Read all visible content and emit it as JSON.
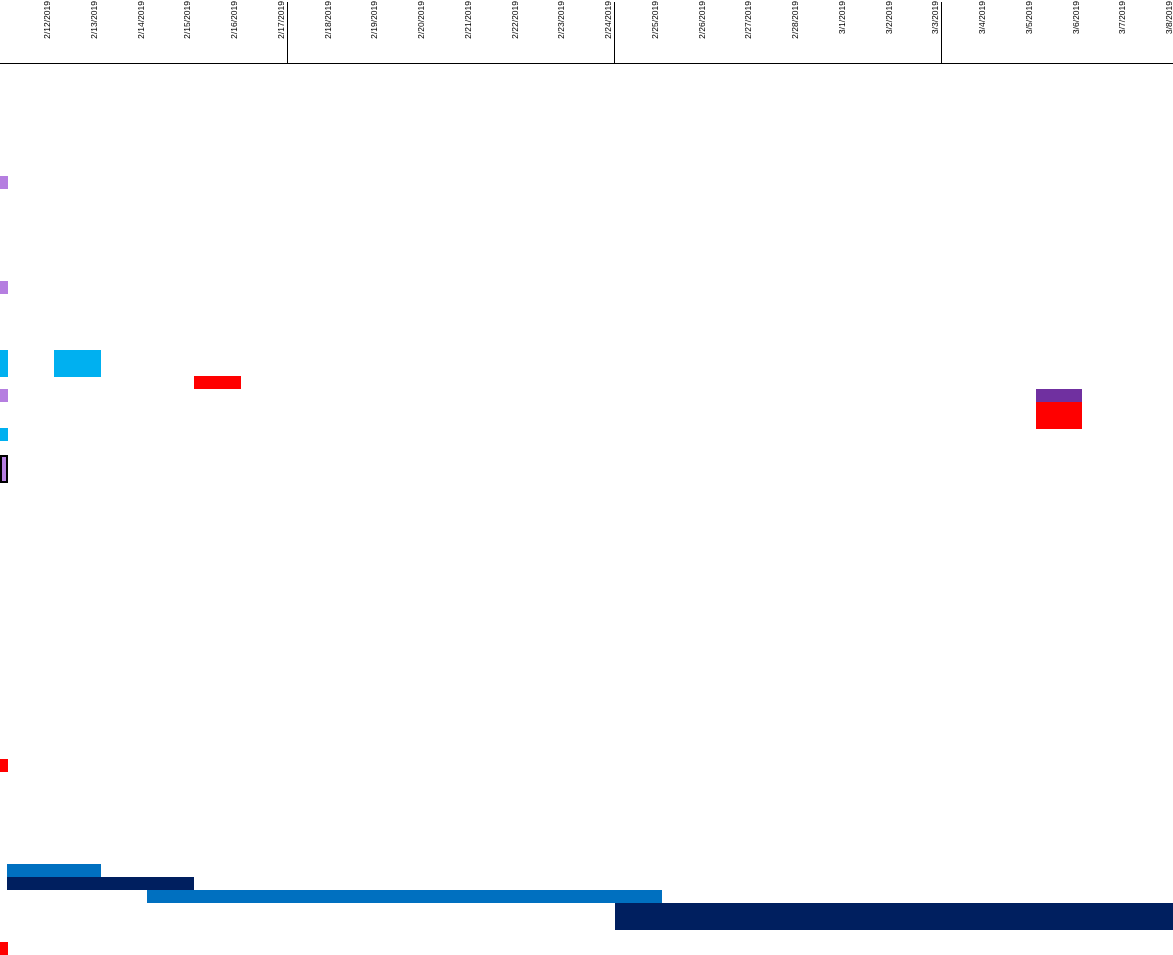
{
  "timeline": {
    "dates": [
      "2/12/2019",
      "2/13/2019",
      "2/14/2019",
      "2/15/2019",
      "2/16/2019",
      "2/17/2019",
      "2/18/2019",
      "2/19/2019",
      "2/20/2019",
      "2/21/2019",
      "2/22/2019",
      "2/23/2019",
      "2/24/2019",
      "2/25/2019",
      "2/26/2019",
      "2/27/2019",
      "2/28/2019",
      "3/1/2019",
      "3/2/2019",
      "3/3/2019",
      "3/4/2019",
      "3/5/2019",
      "3/6/2019",
      "3/7/2019",
      "3/8/2019"
    ],
    "week_start_dates": [
      "2/18/2019",
      "2/25/2019",
      "3/4/2019"
    ]
  },
  "colors": {
    "lavender": "#b57ee0",
    "cyan": "#00b0f0",
    "red": "#ff0000",
    "purple": "#7030a0",
    "medium_blue": "#0070c0",
    "navy": "#001f5f"
  },
  "gantt_bars": [
    {
      "name": "task-marker-1",
      "color": "lavender",
      "start": "2/12/2019",
      "end": "2/12/2019",
      "partial_start": true
    },
    {
      "name": "task-marker-2",
      "color": "lavender",
      "start": "2/12/2019",
      "end": "2/12/2019",
      "partial_start": true
    },
    {
      "name": "task-bar-cyan-a",
      "color": "cyan",
      "start": "2/12/2019",
      "end": "2/12/2019",
      "partial_start": true
    },
    {
      "name": "task-bar-cyan-b",
      "color": "cyan",
      "start": "2/13/2019",
      "end": "2/13/2019"
    },
    {
      "name": "task-bar-red-a",
      "color": "red",
      "start": "2/16/2019",
      "end": "2/16/2019"
    },
    {
      "name": "task-marker-3",
      "color": "lavender",
      "start": "2/12/2019",
      "end": "2/12/2019",
      "partial_start": true
    },
    {
      "name": "task-bar-purple",
      "color": "purple",
      "start": "3/6/2019",
      "end": "3/6/2019"
    },
    {
      "name": "task-bar-red-b",
      "color": "red",
      "start": "3/6/2019",
      "end": "3/6/2019"
    },
    {
      "name": "task-marker-cyan",
      "color": "cyan",
      "start": "2/12/2019",
      "end": "2/12/2019",
      "partial_start": true
    },
    {
      "name": "task-marker-selected",
      "color": "lavender",
      "start": "2/12/2019",
      "end": "2/12/2019",
      "partial_start": true,
      "selected": true
    },
    {
      "name": "task-marker-red-a",
      "color": "red",
      "start": "2/12/2019",
      "end": "2/12/2019",
      "partial_start": true
    },
    {
      "name": "phase-bar-blue-a",
      "color": "medium_blue",
      "start": "2/12/2019",
      "end": "2/13/2019"
    },
    {
      "name": "phase-bar-navy-a",
      "color": "navy",
      "start": "2/12/2019",
      "end": "2/15/2019"
    },
    {
      "name": "phase-bar-blue-b",
      "color": "medium_blue",
      "start": "2/15/2019",
      "end": "2/25/2019"
    },
    {
      "name": "phase-bar-navy-b",
      "color": "navy",
      "start": "2/25/2019",
      "end": "3/8/2019"
    },
    {
      "name": "task-marker-red-b",
      "color": "red",
      "start": "2/12/2019",
      "end": "2/12/2019",
      "partial_start": true
    }
  ]
}
